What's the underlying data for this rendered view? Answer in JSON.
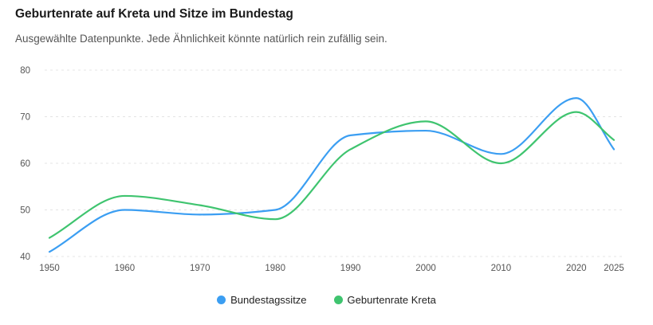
{
  "chart_data": {
    "type": "line",
    "title": "Geburtenrate auf Kreta und Sitze im Bundestag",
    "subtitle": "Ausgewählte Datenpunkte. Jede Ähnlichkeit könnte natürlich rein zufällig sein.",
    "x": [
      1950,
      1960,
      1970,
      1980,
      1990,
      2000,
      2010,
      2020,
      2025
    ],
    "x_ticks": [
      "1950",
      "1960",
      "1970",
      "1980",
      "1990",
      "2000",
      "2010",
      "2020",
      "2025"
    ],
    "y_ticks": [
      "40",
      "50",
      "60",
      "70",
      "80"
    ],
    "ylim": [
      40,
      80
    ],
    "series": [
      {
        "name": "Bundestagssitze",
        "color": "#3b9ef2",
        "values": [
          41,
          50,
          49,
          50,
          66,
          67,
          62,
          74,
          63
        ]
      },
      {
        "name": "Geburtenrate Kreta",
        "color": "#3fc46f",
        "values": [
          44,
          53,
          51,
          48,
          63,
          69,
          60,
          71,
          65
        ]
      }
    ],
    "grid": true,
    "legend_position": "bottom"
  }
}
